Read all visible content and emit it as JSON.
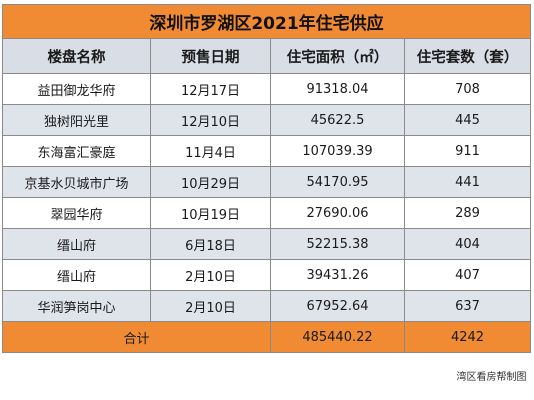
{
  "title": "深圳市罗湖区2021年住宅供应",
  "columns": [
    "楼盘名称",
    "预售日期",
    "住宅面积（㎡）",
    "住宅套数（套）"
  ],
  "rows": [
    {
      "name": "益田御龙华府",
      "date": "12月17日",
      "area": "91318.04",
      "units": "708"
    },
    {
      "name": "独树阳光里",
      "date": "12月10日",
      "area": "45622.5",
      "units": "445"
    },
    {
      "name": "东海富汇豪庭",
      "date": "11月4日",
      "area": "107039.39",
      "units": "911"
    },
    {
      "name": "京基水贝城市广场",
      "date": "10月29日",
      "area": "54170.95",
      "units": "441"
    },
    {
      "name": "翠园华府",
      "date": "10月19日",
      "area": "27690.06",
      "units": "289"
    },
    {
      "name": "缙山府",
      "date": "6月18日",
      "area": "52215.38",
      "units": "404"
    },
    {
      "name": "缙山府",
      "date": "2月10日",
      "area": "39431.26",
      "units": "407"
    },
    {
      "name": "华润笋岗中心",
      "date": "2月10日",
      "area": "67952.64",
      "units": "637"
    }
  ],
  "total": {
    "label": "合计",
    "area": "485440.22",
    "units": "4242"
  },
  "footer": "湾区看房帮制图",
  "colors": {
    "title_bg": "#f08a33",
    "header_bg": "#d8dde6",
    "alt_row_bg": "#dfe3ea",
    "total_bg": "#f08a33"
  }
}
